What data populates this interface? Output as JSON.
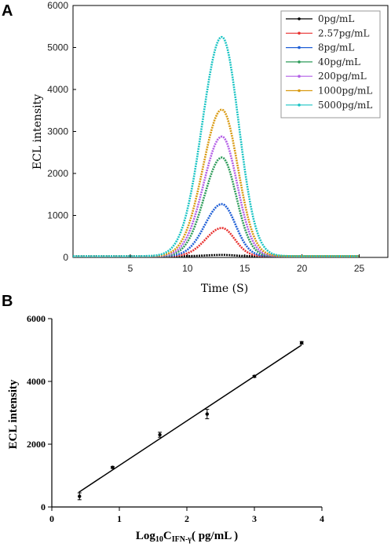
{
  "panels": {
    "a": "A",
    "b": "B"
  },
  "chart_data": [
    {
      "type": "line",
      "xlabel": "Time (S)",
      "ylabel": "ECL intensity",
      "xlim": [
        0,
        27.5
      ],
      "ylim": [
        0,
        6000
      ],
      "xticks": [
        5,
        10,
        15,
        20,
        25
      ],
      "yticks": [
        0,
        1000,
        2000,
        3000,
        4000,
        5000,
        6000
      ],
      "legend_position": "top-right",
      "x_range": [
        0,
        25
      ],
      "series": [
        {
          "name": "0pg/mL",
          "color": "#000000",
          "peak_time": 13.0,
          "peak": 60,
          "baseline": 30
        },
        {
          "name": "2.57pg/mL",
          "color": "#e8312f",
          "peak_time": 13.0,
          "peak": 700,
          "baseline": 30
        },
        {
          "name": "8pg/mL",
          "color": "#1f5fd6",
          "peak_time": 13.0,
          "peak": 1270,
          "baseline": 30
        },
        {
          "name": "40pg/mL",
          "color": "#2e9c5a",
          "peak_time": 13.0,
          "peak": 2380,
          "baseline": 30
        },
        {
          "name": "200pg/mL",
          "color": "#b35ee6",
          "peak_time": 13.0,
          "peak": 2880,
          "baseline": 30
        },
        {
          "name": "1000pg/mL",
          "color": "#d99a12",
          "peak_time": 13.0,
          "peak": 3520,
          "baseline": 30
        },
        {
          "name": "5000pg/mL",
          "color": "#1bc4c4",
          "peak_time": 13.0,
          "peak": 5250,
          "baseline": 30
        }
      ]
    },
    {
      "type": "scatter",
      "xlabel_main": "Log",
      "xlabel_sub1": "10",
      "xlabel_c": "C",
      "xlabel_sub2": "IFN-γ",
      "xlabel_units": "( pg/mL )",
      "ylabel": "ECL intensity",
      "xlim": [
        0,
        4
      ],
      "ylim": [
        0,
        6000
      ],
      "xticks": [
        0,
        1,
        2,
        3,
        4
      ],
      "yticks": [
        0,
        2000,
        4000,
        6000
      ],
      "points": [
        {
          "x": 0.41,
          "y": 340,
          "err": 110
        },
        {
          "x": 0.9,
          "y": 1260,
          "err": 30
        },
        {
          "x": 1.6,
          "y": 2300,
          "err": 80
        },
        {
          "x": 2.3,
          "y": 2960,
          "err": 150
        },
        {
          "x": 3.0,
          "y": 4160,
          "err": 30
        },
        {
          "x": 3.7,
          "y": 5230,
          "err": 40
        }
      ],
      "fit_line": {
        "x": [
          0.4,
          3.7
        ],
        "y": [
          470,
          5160
        ]
      }
    }
  ]
}
